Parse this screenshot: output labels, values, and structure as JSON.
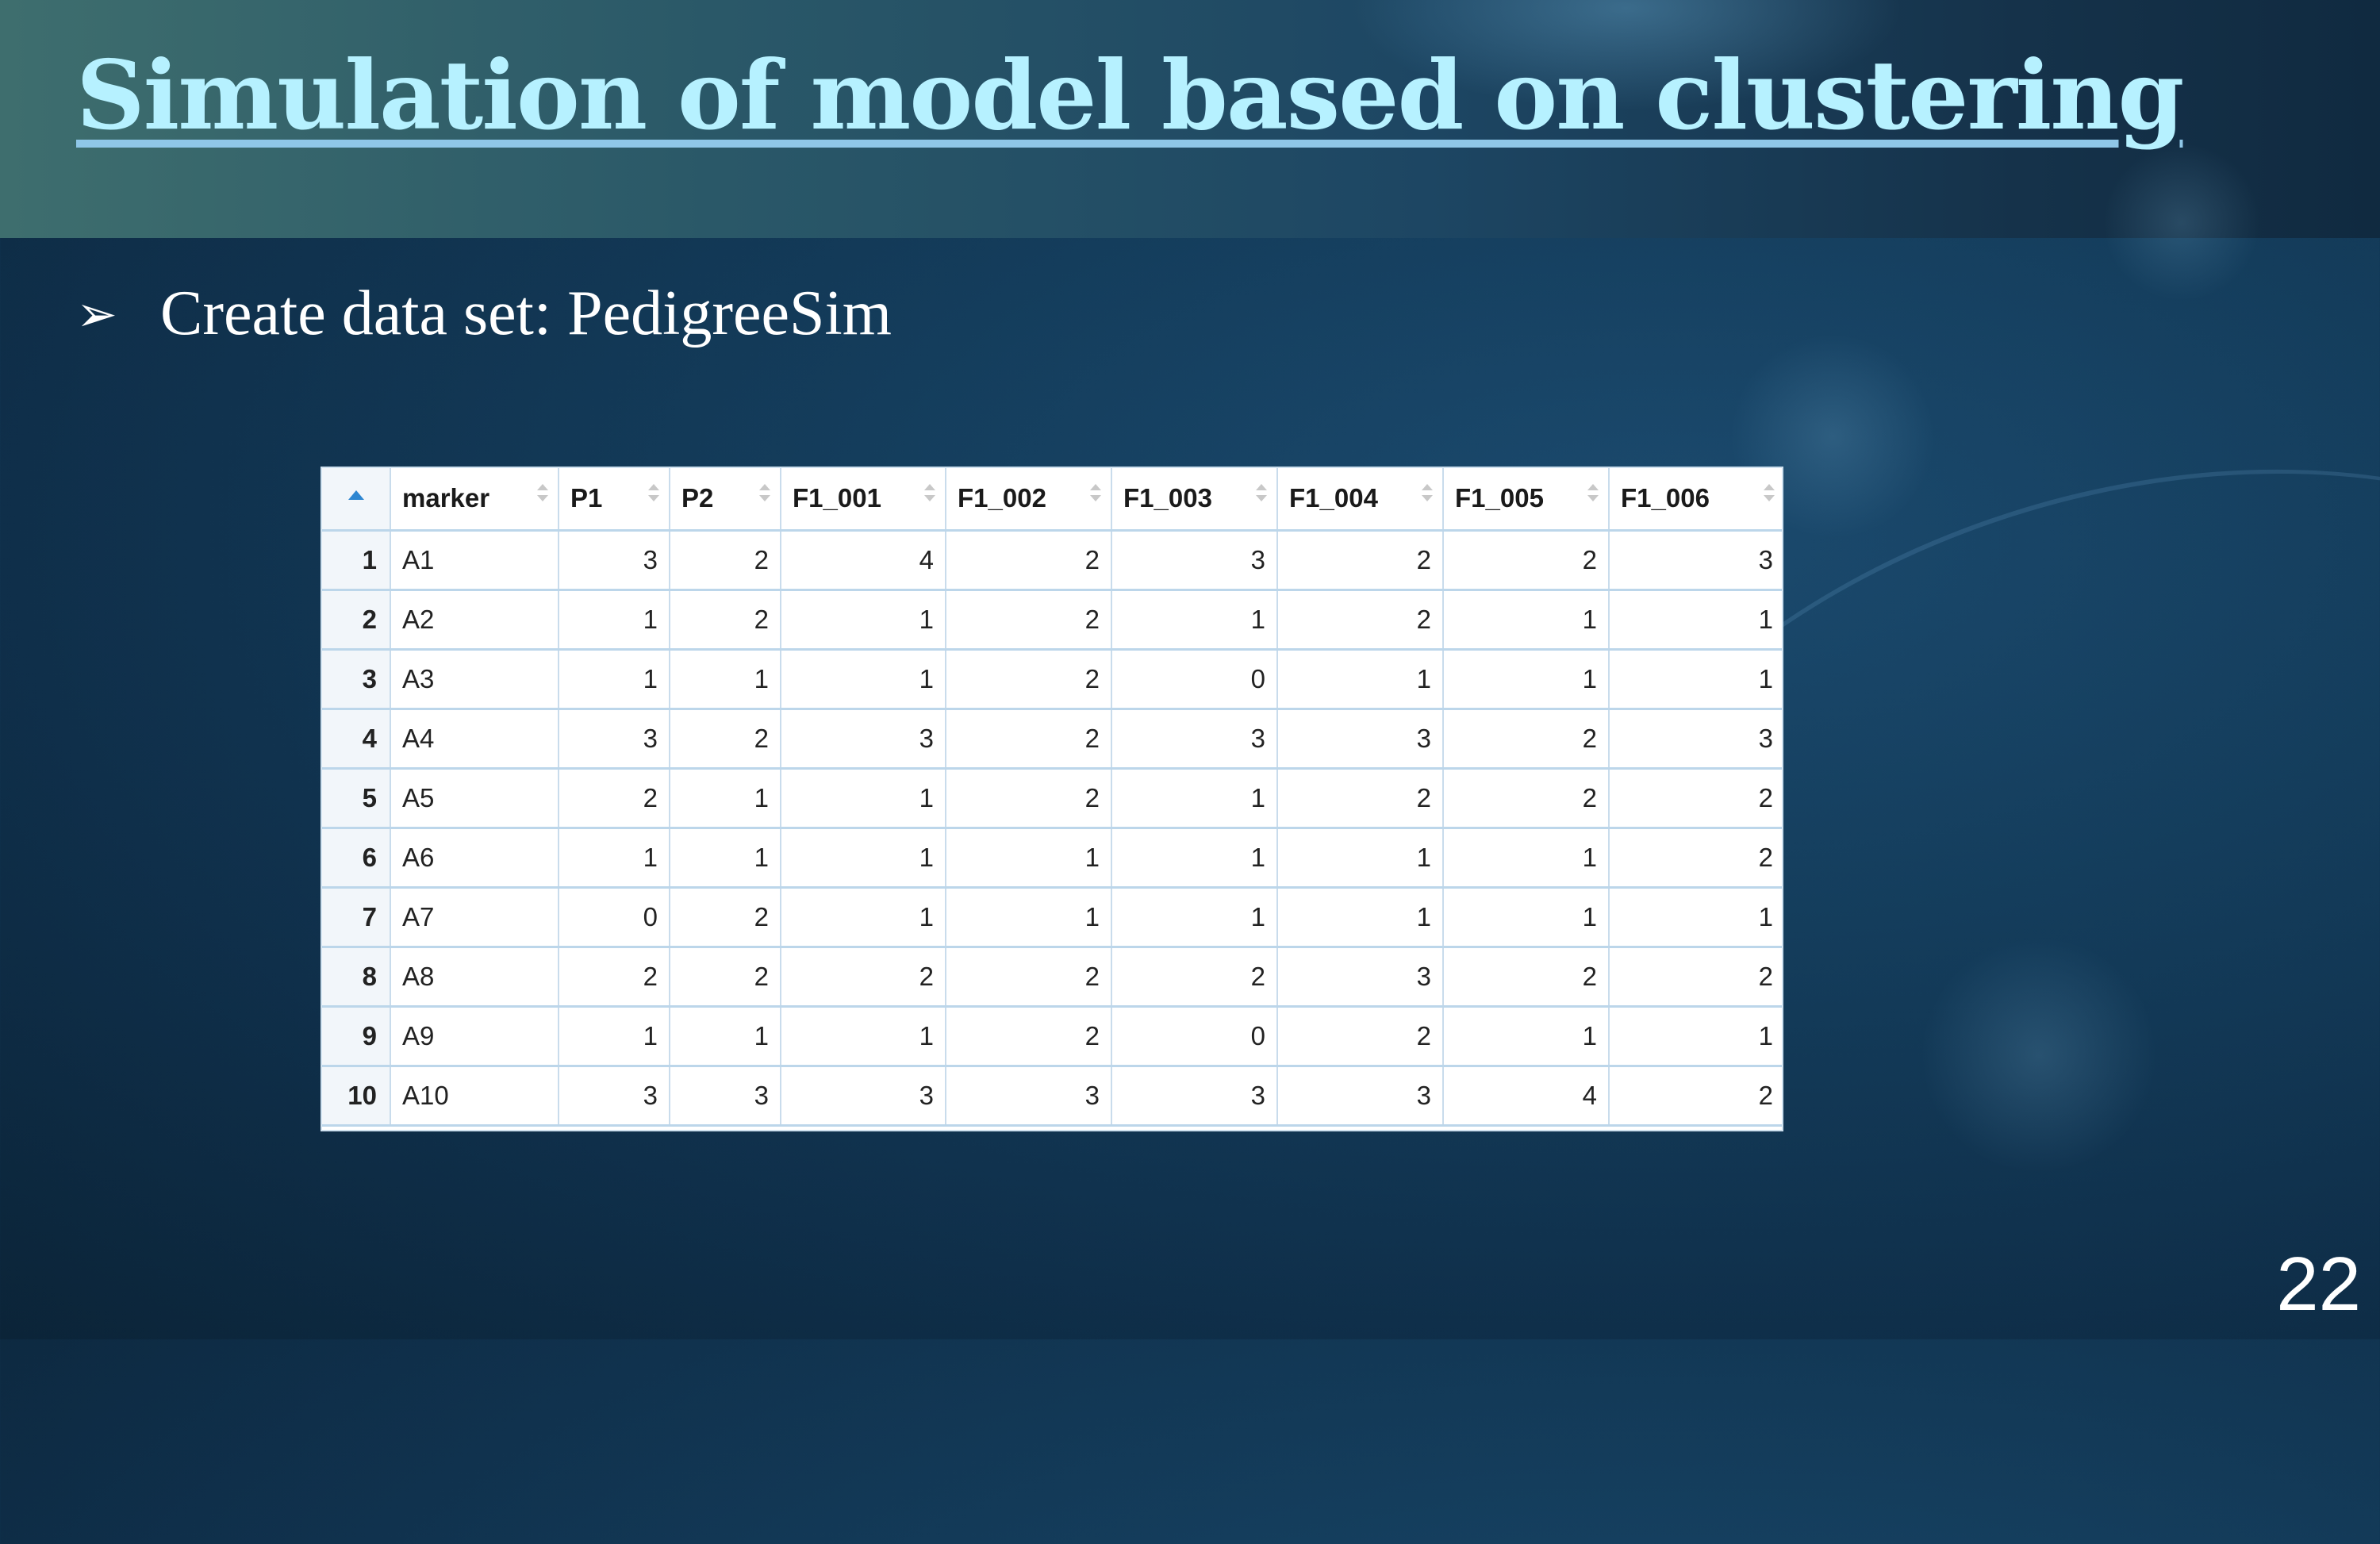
{
  "slide": {
    "title": "Simulation of model based on clustering",
    "bullet_icon": "arrowhead-bullet",
    "bullet_glyph": "➢",
    "bullet_text": "Create data set: PedigreeSim",
    "page_number": "22",
    "colors": {
      "title": "#b6f1ff",
      "background": "#143d5c",
      "sort_icon": "#2e86d1"
    }
  },
  "table": {
    "columns": [
      "marker",
      "P1",
      "P2",
      "F1_001",
      "F1_002",
      "F1_003",
      "F1_004",
      "F1_005",
      "F1_006"
    ],
    "rows": [
      {
        "index": "1",
        "cells": [
          "A1",
          "3",
          "2",
          "4",
          "2",
          "3",
          "2",
          "2",
          "3"
        ]
      },
      {
        "index": "2",
        "cells": [
          "A2",
          "1",
          "2",
          "1",
          "2",
          "1",
          "2",
          "1",
          "1"
        ]
      },
      {
        "index": "3",
        "cells": [
          "A3",
          "1",
          "1",
          "1",
          "2",
          "0",
          "1",
          "1",
          "1"
        ]
      },
      {
        "index": "4",
        "cells": [
          "A4",
          "3",
          "2",
          "3",
          "2",
          "3",
          "3",
          "2",
          "3"
        ]
      },
      {
        "index": "5",
        "cells": [
          "A5",
          "2",
          "1",
          "1",
          "2",
          "1",
          "2",
          "2",
          "2"
        ]
      },
      {
        "index": "6",
        "cells": [
          "A6",
          "1",
          "1",
          "1",
          "1",
          "1",
          "1",
          "1",
          "2"
        ]
      },
      {
        "index": "7",
        "cells": [
          "A7",
          "0",
          "2",
          "1",
          "1",
          "1",
          "1",
          "1",
          "1"
        ]
      },
      {
        "index": "8",
        "cells": [
          "A8",
          "2",
          "2",
          "2",
          "2",
          "2",
          "3",
          "2",
          "2"
        ]
      },
      {
        "index": "9",
        "cells": [
          "A9",
          "1",
          "1",
          "1",
          "2",
          "0",
          "2",
          "1",
          "1"
        ]
      },
      {
        "index": "10",
        "cells": [
          "A10",
          "3",
          "3",
          "3",
          "3",
          "3",
          "3",
          "4",
          "2"
        ]
      }
    ]
  }
}
